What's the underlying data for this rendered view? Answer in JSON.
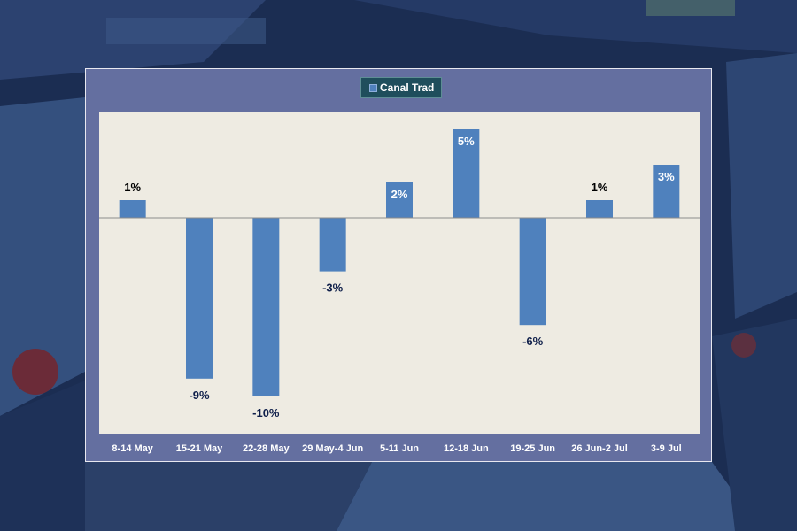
{
  "chart_data": {
    "type": "bar",
    "categories": [
      "8-14 May",
      "15-21 May",
      "22-28 May",
      "29 May-4  Jun",
      "5-11 Jun",
      "12-18 Jun",
      "19-25 Jun",
      "26 Jun-2 Jul",
      "3-9 Jul"
    ],
    "series": [
      {
        "name": "Canal Trad",
        "values": [
          1,
          -9,
          -10,
          -3,
          2,
          5,
          -6,
          1,
          3
        ]
      }
    ],
    "data_labels": [
      "1%",
      "-9%",
      "-10%",
      "-3%",
      "2%",
      "5%",
      "-6%",
      "1%",
      "3%"
    ],
    "title": "",
    "xlabel": "",
    "ylabel": "",
    "ylim": [
      -12,
      6
    ],
    "legend_position": "top-center",
    "grid": false
  },
  "colors": {
    "bar": "#4f81bd",
    "plot_area": "#eeebe2",
    "frame": "#646fa0",
    "legend_bg": "#1f4e5c",
    "label_positive": "#000000",
    "label_negative": "#0f1f4a",
    "label_inside": "#ffffff",
    "category_text": "#ffffff"
  }
}
